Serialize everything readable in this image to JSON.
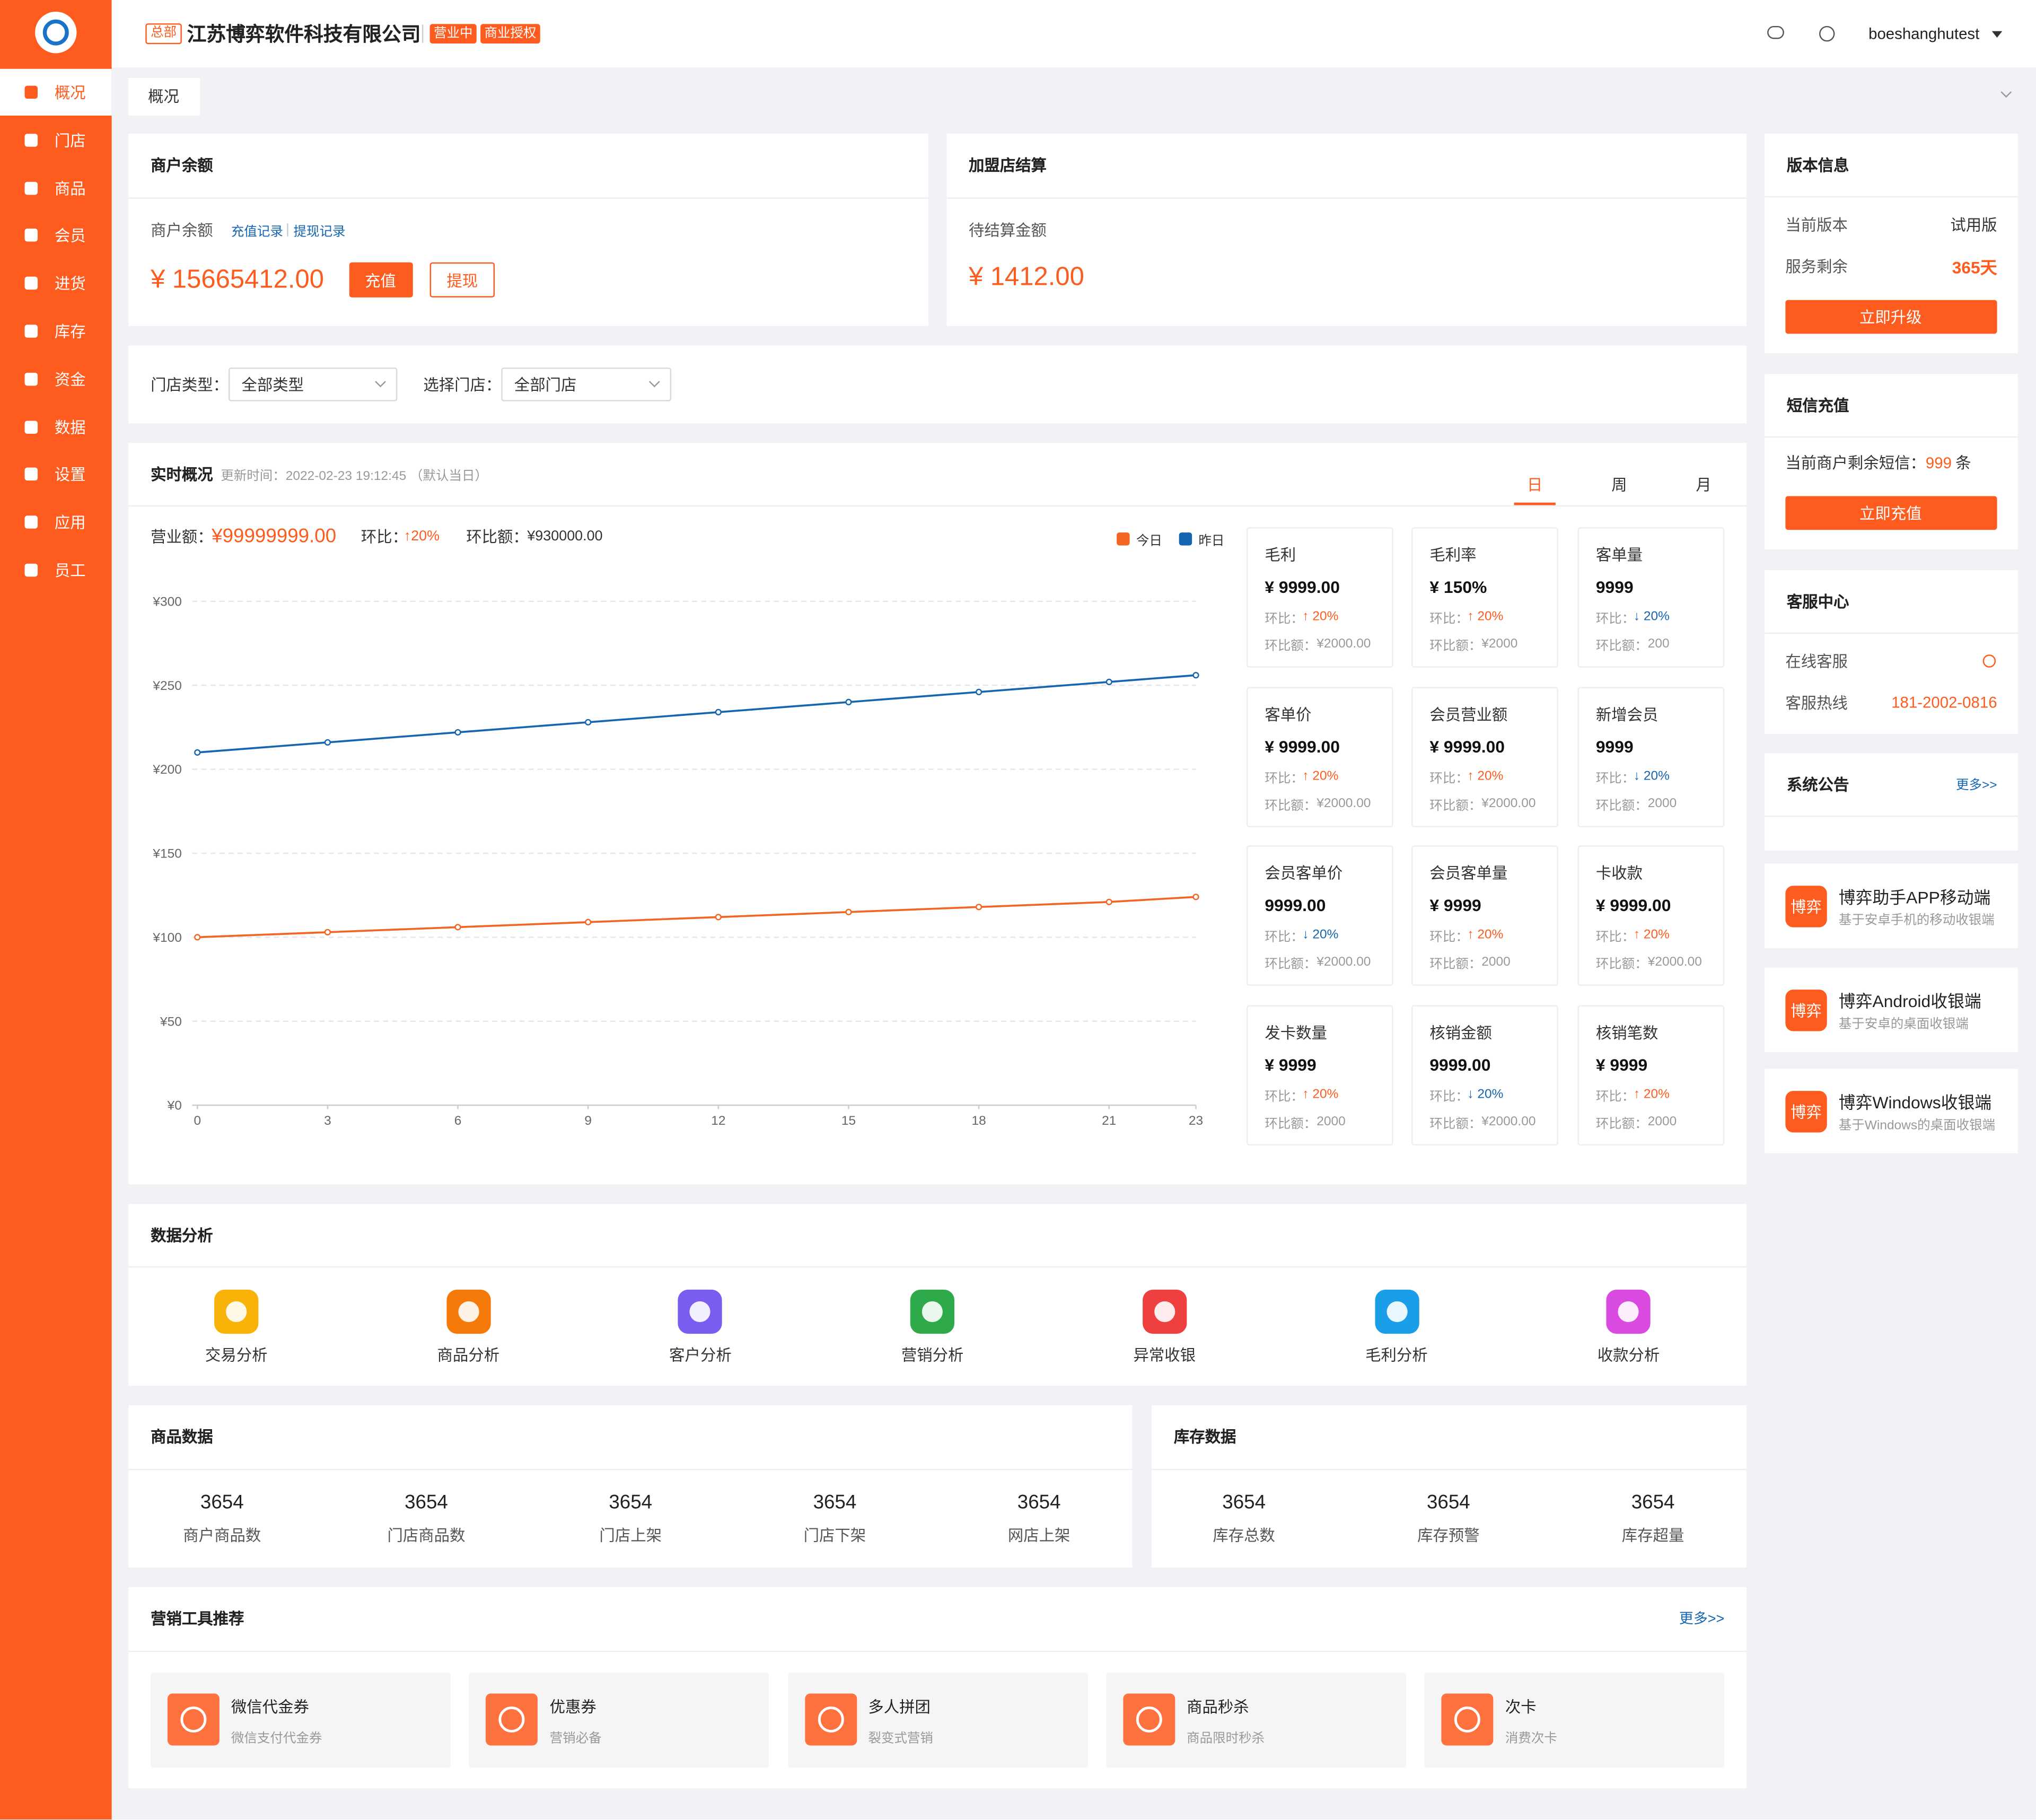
{
  "header": {
    "hq_tag": "总部",
    "company": "江苏博弈软件科技有限公司",
    "status_tags": [
      "营业中",
      "商业授权"
    ],
    "username": "boeshanghutest"
  },
  "sidebar": {
    "menu": [
      "概况",
      "门店",
      "商品",
      "会员",
      "进货",
      "库存",
      "资金",
      "数据",
      "设置",
      "应用",
      "员工"
    ],
    "active": 0
  },
  "tabs": {
    "items": [
      "概况"
    ]
  },
  "balance": {
    "title": "商户余额",
    "label": "商户余额",
    "links": [
      "充值记录",
      "提现记录"
    ],
    "amount": "¥ 15665412.00",
    "buttons": [
      "充值",
      "提现"
    ]
  },
  "settlement": {
    "title": "加盟店结算",
    "label": "待结算金额",
    "amount": "¥ 1412.00"
  },
  "filters": [
    {
      "label": "门店类型：",
      "value": "全部类型"
    },
    {
      "label": "选择门店：",
      "value": "全部门店"
    }
  ],
  "realtime": {
    "title": "实时概况",
    "update_time": "更新时间：2022-02-23 19:12:45 （默认当日）",
    "periods": [
      "日",
      "周",
      "月"
    ],
    "active_period": 0,
    "revenue_label": "营业额：",
    "revenue": "¥99999999.00",
    "change_label": "环比：",
    "revenue_change": "↑20%",
    "amount_label": "环比额：",
    "revenue_change_amount": "¥930000.00",
    "stats": [
      {
        "label": "毛利",
        "value": "¥ 9999.00",
        "change": "↑ 20%",
        "trend": "up",
        "amount": "¥2000.00"
      },
      {
        "label": "毛利率",
        "value": "¥ 150%",
        "change": "↑ 20%",
        "trend": "up",
        "amount": "¥2000"
      },
      {
        "label": "客单量",
        "value": "9999",
        "change": "↓ 20%",
        "trend": "down",
        "amount": "200"
      },
      {
        "label": "客单价",
        "value": "¥ 9999.00",
        "change": "↑ 20%",
        "trend": "up",
        "amount": "¥2000.00"
      },
      {
        "label": "会员营业额",
        "value": "¥ 9999.00",
        "change": "↑ 20%",
        "trend": "up",
        "amount": "¥2000.00"
      },
      {
        "label": "新增会员",
        "value": "9999",
        "change": "↓ 20%",
        "trend": "down",
        "amount": "2000"
      },
      {
        "label": "会员客单价",
        "value": "9999.00",
        "change": "↓ 20%",
        "trend": "down",
        "amount": "¥2000.00"
      },
      {
        "label": "会员客单量",
        "value": "¥ 9999",
        "change": "↑ 20%",
        "trend": "up",
        "amount": "2000"
      },
      {
        "label": "卡收款",
        "value": "¥ 9999.00",
        "change": "↑ 20%",
        "trend": "up",
        "amount": "¥2000.00"
      },
      {
        "label": "发卡数量",
        "value": "¥ 9999",
        "change": "↑ 20%",
        "trend": "up",
        "amount": "2000"
      },
      {
        "label": "核销金额",
        "value": "9999.00",
        "change": "↓ 20%",
        "trend": "down",
        "amount": "¥2000.00"
      },
      {
        "label": "核销笔数",
        "value": "¥ 9999",
        "change": "↑ 20%",
        "trend": "up",
        "amount": "2000"
      }
    ]
  },
  "chart_data": {
    "type": "line",
    "x": [
      0,
      3,
      6,
      9,
      12,
      15,
      18,
      21,
      23
    ],
    "series": [
      {
        "name": "今日",
        "color": "#f26522",
        "values": [
          100,
          103,
          106,
          109,
          112,
          115,
          118,
          121,
          124
        ]
      },
      {
        "name": "昨日",
        "color": "#1565b0",
        "values": [
          210,
          216,
          222,
          228,
          234,
          240,
          246,
          252,
          256
        ]
      }
    ],
    "xlim": [
      0,
      23
    ],
    "xticks": [
      0,
      3,
      6,
      9,
      12,
      15,
      18,
      21,
      23
    ],
    "ylim": [
      0,
      300
    ],
    "yticks": [
      {
        "value": 0,
        "label": "¥0"
      },
      {
        "value": 50,
        "label": "¥50"
      },
      {
        "value": 100,
        "label": "¥100"
      },
      {
        "value": 150,
        "label": "¥150"
      },
      {
        "value": 200,
        "label": "¥200"
      },
      {
        "value": 250,
        "label": "¥250"
      },
      {
        "value": 300,
        "label": "¥300"
      }
    ],
    "grid": true
  },
  "analysis": {
    "title": "数据分析",
    "items": [
      {
        "label": "交易分析",
        "color": "#f9b208"
      },
      {
        "label": "商品分析",
        "color": "#f57a0a"
      },
      {
        "label": "客户分析",
        "color": "#7b5cf0"
      },
      {
        "label": "营销分析",
        "color": "#2eaa4a"
      },
      {
        "label": "异常收银",
        "color": "#ef4040"
      },
      {
        "label": "毛利分析",
        "color": "#1a9ee8"
      },
      {
        "label": "收款分析",
        "color": "#d84ae0"
      }
    ]
  },
  "goods_data": {
    "title": "商品数据",
    "items": [
      {
        "value": 3654,
        "label": "商户商品数"
      },
      {
        "value": 3654,
        "label": "门店商品数"
      },
      {
        "value": 3654,
        "label": "门店上架"
      },
      {
        "value": 3654,
        "label": "门店下架"
      },
      {
        "value": 3654,
        "label": "网店上架"
      }
    ]
  },
  "stock_data": {
    "title": "库存数据",
    "items": [
      {
        "value": 3654,
        "label": "库存总数"
      },
      {
        "value": 3654,
        "label": "库存预警"
      },
      {
        "value": 3654,
        "label": "库存超量"
      }
    ]
  },
  "marketing": {
    "title": "营销工具推荐",
    "more": "更多>>",
    "items": [
      {
        "title": "微信代金券",
        "subtitle": "微信支付代金券"
      },
      {
        "title": "优惠券",
        "subtitle": "营销必备"
      },
      {
        "title": "多人拼团",
        "subtitle": "裂变式营销"
      },
      {
        "title": "商品秒杀",
        "subtitle": "商品限时秒杀"
      },
      {
        "title": "次卡",
        "subtitle": "消费次卡"
      }
    ]
  },
  "version": {
    "title": "版本信息",
    "rows": [
      {
        "label": "当前版本",
        "value": "试用版"
      },
      {
        "label": "服务剩余",
        "value": "365天"
      }
    ],
    "button": "立即升级"
  },
  "sms": {
    "title": "短信充值",
    "prefix": "当前商户剩余短信：",
    "count": 999,
    "unit": "条",
    "button": "立即充值"
  },
  "service": {
    "title": "客服中心",
    "online": "在线客服",
    "hotline_label": "客服热线",
    "hotline": "181-2002-0816"
  },
  "notice": {
    "title": "系统公告",
    "more": "更多>>"
  },
  "apps": {
    "icon_text": "博弈",
    "items": [
      {
        "title": "博弈助手APP移动端",
        "subtitle": "基于安卓手机的移动收银端"
      },
      {
        "title": "博弈Android收银端",
        "subtitle": "基于安卓的桌面收银端"
      },
      {
        "title": "博弈Windows收银端",
        "subtitle": "基于Windows的桌面收银端"
      }
    ]
  }
}
